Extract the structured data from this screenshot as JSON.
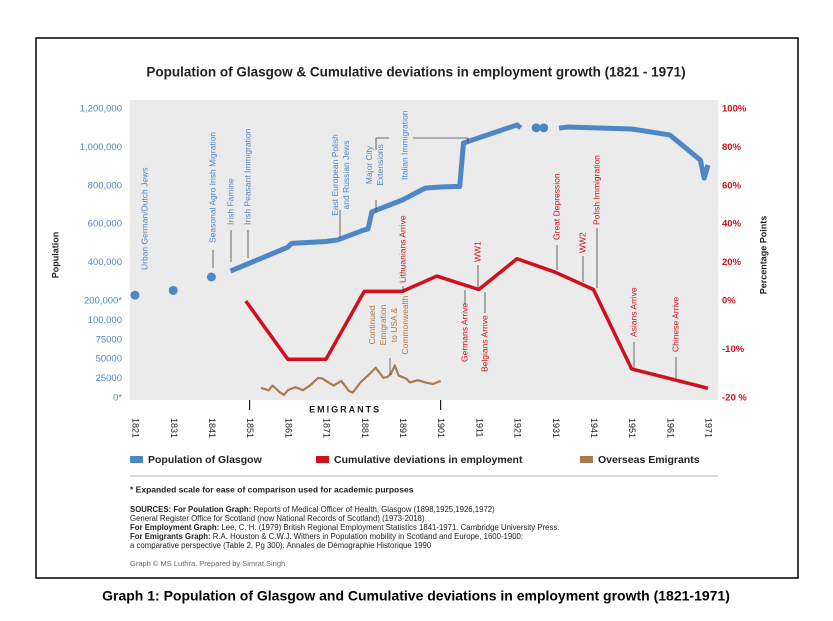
{
  "chart_data": {
    "type": "line",
    "title": "Population of Glasgow & Cumulative deviations in employment growth (1821 - 1971)",
    "ylabel": "Population",
    "y2label": "Percentage Points",
    "xlim": [
      1821,
      1971
    ],
    "xticks": [
      1821,
      1831,
      1841,
      1851,
      1861,
      1871,
      1881,
      1891,
      1901,
      1911,
      1921,
      1931,
      1941,
      1951,
      1961,
      1971
    ],
    "ylim": [
      0,
      1200000
    ],
    "yticks": [
      {
        "value": 0,
        "label": "0*"
      },
      25000,
      50000,
      75000,
      {
        "value": 100000,
        "label": "100,000"
      },
      {
        "value": 200000,
        "label": "200,000*"
      },
      {
        "value": 400000,
        "label": "400,000"
      },
      {
        "value": 600000,
        "label": "600,000"
      },
      {
        "value": 800000,
        "label": "800,000"
      },
      {
        "value": 1000000,
        "label": "1,000,000"
      },
      {
        "value": 1200000,
        "label": "1,200,000"
      }
    ],
    "y2lim": [
      -20,
      100
    ],
    "y2ticks": [
      {
        "value": -20,
        "label": "-20 %"
      },
      {
        "value": -10,
        "label": "-10%"
      },
      {
        "value": 0,
        "label": "0%"
      },
      {
        "value": 20,
        "label": "20%"
      },
      {
        "value": 40,
        "label": "40%"
      },
      {
        "value": 60,
        "label": "60%"
      },
      {
        "value": 80,
        "label": "80%"
      },
      {
        "value": 100,
        "label": "100%"
      }
    ],
    "series": [
      {
        "name": "Population of Glasgow",
        "color": "#4f86c6",
        "axis": "y",
        "x": [
          1821,
          null,
          1831,
          null,
          1841,
          null,
          1846,
          1861,
          1862,
          1871,
          1874,
          1881,
          1882,
          1883,
          1891,
          1896,
          1897,
          1901,
          1906,
          1907,
          1921,
          1922,
          null,
          1926,
          null,
          1928,
          null,
          1932,
          1934,
          1951,
          1961,
          1969,
          1970,
          1971
        ],
        "values": [
          230000,
          null,
          255000,
          null,
          325000,
          null,
          356000,
          480000,
          500000,
          510000,
          518000,
          570000,
          575000,
          664000,
          726000,
          778000,
          788000,
          794000,
          797000,
          1023000,
          1117000,
          1102000,
          null,
          1102000,
          null,
          1102000,
          null,
          1100000,
          1106000,
          1096000,
          1065000,
          934000,
          840000,
          908000
        ],
        "annotations": [
          [
            "Urban German/Dutch Jews"
          ],
          [
            "Seasonal Agro Irish  Migration"
          ],
          [
            "Irish Famine"
          ],
          [
            "Irish  Peasant Immigration"
          ],
          [
            "East European Polish",
            "and Russian Jews"
          ],
          [
            "Major City",
            "Extensions"
          ],
          [
            "Italian Immigration"
          ]
        ]
      },
      {
        "name": "Cumulative deviations in employment",
        "color": "#d0101a",
        "axis": "y2",
        "x": [
          1850,
          1861,
          1871,
          1881,
          1891,
          1900,
          1911,
          1921,
          1931,
          1941,
          1951,
          1961,
          1971
        ],
        "values": [
          0,
          -12,
          -12,
          5,
          5,
          13,
          6,
          22,
          15,
          6,
          -14,
          -16,
          -18
        ],
        "annotations": [
          [
            "Lithuanians Arrive"
          ],
          [
            "WW1"
          ],
          [
            "Great Depression"
          ],
          [
            "WW2"
          ],
          [
            "Polish Immigration"
          ],
          [
            "Germans Arrive"
          ],
          [
            "Belgians Arrive"
          ],
          [
            "Asians Arrive"
          ],
          [
            "Chinese Arrive"
          ]
        ]
      },
      {
        "name": "Overseas Emigrants",
        "color": "#a97a4a",
        "axis": "y",
        "x": [
          1854,
          1856,
          1857,
          1859,
          1860,
          1861,
          1863,
          1865,
          1867,
          1869,
          1870,
          1871,
          1873,
          1875,
          1877,
          1878,
          1880,
          1882,
          1884,
          1886,
          1887,
          1888,
          1889,
          1890,
          1892,
          1893,
          1895,
          1897,
          1899,
          1901
        ],
        "values": [
          13000,
          10000,
          16000,
          7000,
          4000,
          10000,
          14000,
          10000,
          17000,
          26000,
          25000,
          22000,
          16000,
          22000,
          9000,
          7000,
          20000,
          29000,
          39000,
          26000,
          27000,
          31000,
          42000,
          29000,
          25000,
          20000,
          23000,
          20000,
          18000,
          22000
        ],
        "annotations": [
          [
            "Continued",
            "Emigration",
            "to USA &",
            "Commonwealth"
          ]
        ]
      }
    ],
    "emigrants_label": "EMIGRANTS",
    "footnote": "* Expanded scale for ease of comparison used for academic purposes",
    "sources": [
      {
        "label": "SOURCES: For Poulation Graph:",
        "lines": [
          "Reports of Medical Officer of Health, Glasgow (1898,1925,1926,1972)",
          "General Register Office for Scotland (now National Records of Scotland) (1973-2018)"
        ]
      },
      {
        "label": "For Employment  Graph:",
        "lines": [
          "Lee, C. H. (1979) British Regional Employment Statistics 1841-1971. Cambridge University Press."
        ]
      },
      {
        "label": "For Emigrants Graph:",
        "lines": [
          "R.A. Houston & C.W.J. Withers in Population mobility in Scotland and Europe, 1600-1900:",
          "a comparative perspective (Table 2, Pg 300). Annales de Démographie Historique 1990"
        ]
      }
    ],
    "credit": "Graph © MS Luthra. Prepared by Simrat Singh"
  },
  "caption": "Graph 1: Population of Glasgow and Cumulative deviations in employment growth (1821-1971)"
}
